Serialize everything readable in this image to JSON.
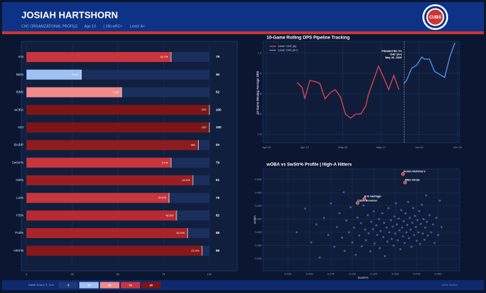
{
  "header": {
    "title": "JOSIAH HARTSHORN",
    "subtitle": [
      "CHC ORGANIZATIONAL PROFILE",
      "Age 19",
      "| 196 wRC+",
      "Level: A+"
    ],
    "logo": "CUBS"
  },
  "footer": {
    "scale_label": "RANK SCALE P_TILE",
    "steps": [
      {
        "value": 5,
        "color": "#1b3a7a"
      },
      {
        "value": 30,
        "color": "#9ec0f2"
      },
      {
        "value": 50,
        "color": "#f08a8a"
      },
      {
        "value": 70,
        "color": "#c8353d"
      },
      {
        "value": 95,
        "color": "#7d1517"
      }
    ],
    "note": "100% Verified"
  },
  "chart_data": [
    {
      "type": "bar",
      "categories": [
        "K%",
        "BB%",
        "BB/K",
        "wOBA",
        "ISO",
        "BABIP",
        "SwStr%",
        "GB%",
        "LD%",
        "FB%",
        "Pull%",
        "HR/FB"
      ],
      "values": [
        79,
        30,
        52,
        100,
        100,
        94,
        79,
        91,
        78,
        82,
        88,
        96
      ],
      "stats": [
        "15.2%",
        "5.9%",
        "0.39",
        ".521",
        ".337",
        ".381",
        "9.1%",
        "22.9%",
        "20.6%",
        "42.6%",
        "52.6%",
        "22.3%"
      ],
      "colors": [
        "#c8353d",
        "#9ec0f2",
        "#f08a8a",
        "#7d1517",
        "#7d1517",
        "#8e1c1e",
        "#c8353d",
        "#9a1f22",
        "#c8353d",
        "#b82b32",
        "#a82428",
        "#861819"
      ],
      "xlim": [
        0,
        100
      ],
      "xticks": [
        0,
        25,
        50,
        75,
        100
      ],
      "grid": true
    },
    {
      "type": "line",
      "title": "10-Game Rolling OPS Pipeline Tracking",
      "ylabel": "10-Game Moving Average OPS",
      "series": [
        {
          "name": "Level: CHC (A)",
          "color": "#e0474c",
          "x": [
            "Apr 14",
            "Apr 16",
            "Apr 17",
            "Apr 19",
            "Apr 21",
            "Apr 23",
            "Apr 24",
            "Apr 25",
            "Apr 27",
            "Apr 29",
            "May 01",
            "May 03",
            "May 05",
            "May 07",
            "May 09",
            "May 11",
            "May 12",
            "May 14",
            "May 16",
            "May 18",
            "May 20",
            "May 22",
            "May 24"
          ],
          "values": [
            0.91,
            0.86,
            0.75,
            0.93,
            0.92,
            0.9,
            0.82,
            0.75,
            0.81,
            0.84,
            0.77,
            0.6,
            0.56,
            0.6,
            0.6,
            0.68,
            0.79,
            0.93,
            1.07,
            0.96,
            0.84,
            0.98,
            0.84
          ]
        },
        {
          "name": "Level: CHC (A+)",
          "color": "#4f95e8",
          "x": [
            "May 26",
            "May 27",
            "May 29",
            "May 31",
            "Jun 02",
            "Jun 03",
            "Jun 05",
            "Jun 07",
            "Jun 09",
            "Jun 11",
            "Jun 13",
            "Jun 15"
          ],
          "values": [
            0.9,
            0.93,
            1.05,
            1.08,
            1.16,
            1.14,
            1.14,
            1.02,
            0.99,
            0.96,
            1.16,
            1.3
          ]
        }
      ],
      "annotation": {
        "x": "May 26",
        "lines": [
          "PROMOTED TO",
          "CHC (A+)",
          "May 26, 2026"
        ]
      },
      "xlim": [
        "Apr 02",
        "Jun 16"
      ],
      "xticks": [
        "Apr 02",
        "Apr 17",
        "May 02",
        "May 17",
        "Jun 01",
        "Jun 16"
      ],
      "ylim": [
        0.32,
        1.3
      ],
      "yticks": [
        0.4,
        0.6,
        0.8,
        {
          "value": 1,
          "label": "1.0"
        },
        1.2
      ],
      "grid": true,
      "legend": "upper-left"
    },
    {
      "type": "scatter",
      "title": "wOBA vs SwStr% Profile  |  High-A Hitters",
      "xlabel": "SwStr%",
      "ylabel": "wOBA",
      "color": "#4a78c0",
      "highlight_color": "#e03a3e",
      "points": {
        "x": [
          0.215,
          0.205,
          0.198,
          0.192,
          0.188,
          0.183,
          0.178,
          0.175,
          0.171,
          0.168,
          0.165,
          0.162,
          0.159,
          0.157,
          0.154,
          0.152,
          0.15,
          0.148,
          0.146,
          0.144,
          0.142,
          0.14,
          0.139,
          0.137,
          0.135,
          0.134,
          0.132,
          0.131,
          0.129,
          0.128,
          0.126,
          0.125,
          0.124,
          0.122,
          0.121,
          0.119,
          0.118,
          0.117,
          0.115,
          0.114,
          0.113,
          0.112,
          0.11,
          0.109,
          0.108,
          0.107,
          0.105,
          0.104,
          0.103,
          0.102,
          0.101,
          0.1,
          0.099,
          0.098,
          0.097,
          0.096,
          0.095,
          0.094,
          0.093,
          0.092,
          0.091,
          0.09,
          0.089,
          0.088,
          0.087,
          0.086,
          0.085,
          0.084,
          0.083,
          0.082,
          0.081,
          0.08,
          0.079,
          0.078,
          0.077,
          0.076,
          0.075,
          0.074,
          0.073,
          0.072,
          0.071,
          0.07,
          0.069,
          0.068,
          0.067,
          0.066,
          0.065,
          0.064,
          0.063,
          0.062,
          0.06,
          0.058,
          0.056,
          0.054,
          0.052,
          0.05,
          0.048,
          0.046,
          0.12,
          0.16
        ],
        "y": [
          0.3,
          0.39,
          0.262,
          0.33,
          0.205,
          0.355,
          0.29,
          0.41,
          0.245,
          0.32,
          0.372,
          0.28,
          0.23,
          0.345,
          0.3,
          0.395,
          0.262,
          0.318,
          0.215,
          0.356,
          0.288,
          0.335,
          0.247,
          0.402,
          0.31,
          0.27,
          0.365,
          0.296,
          0.228,
          0.34,
          0.312,
          0.38,
          0.258,
          0.327,
          0.29,
          0.35,
          0.24,
          0.305,
          0.372,
          0.282,
          0.336,
          0.21,
          0.318,
          0.265,
          0.392,
          0.3,
          0.346,
          0.275,
          0.322,
          0.25,
          0.36,
          0.295,
          0.41,
          0.33,
          0.27,
          0.352,
          0.308,
          0.236,
          0.384,
          0.318,
          0.285,
          0.342,
          0.26,
          0.372,
          0.3,
          0.328,
          0.415,
          0.278,
          0.355,
          0.31,
          0.245,
          0.336,
          0.392,
          0.29,
          0.362,
          0.32,
          0.268,
          0.346,
          0.3,
          0.38,
          0.256,
          0.332,
          0.405,
          0.295,
          0.35,
          0.272,
          0.318,
          0.44,
          0.34,
          0.288,
          0.365,
          0.3,
          0.33,
          0.26,
          0.355,
          0.29,
          0.42,
          0.32,
          0.432,
          0.452
        ]
      },
      "highlights": [
        {
          "label": "Josiah Hartshorn",
          "x": 0.091,
          "y": 0.521
        },
        {
          "label": "Mike Sirota",
          "x": 0.0885,
          "y": 0.489
        },
        {
          "label": "Eric Hartman",
          "x": 0.136,
          "y": 0.427
        },
        {
          "label": "Caleb Bonemer",
          "x": 0.144,
          "y": 0.411
        }
      ],
      "xlim": [
        0.25,
        0.0275
      ],
      "xticks": [
        {
          "value": 0.225,
          "label": "0.225"
        },
        {
          "value": 0.2,
          "label": "0.200"
        },
        {
          "value": 0.175,
          "label": "0.175"
        },
        {
          "value": 0.15,
          "label": "0.150"
        },
        {
          "value": 0.125,
          "label": "0.125"
        },
        {
          "value": 0.1,
          "label": "0.100"
        },
        {
          "value": 0.075,
          "label": "0.075"
        },
        {
          "value": 0.05,
          "label": "0.050"
        }
      ],
      "ylim": [
        0.154,
        0.54
      ],
      "yticks": [
        {
          "value": 0.2,
          "label": "0.200"
        },
        {
          "value": 0.25,
          "label": "0.250"
        },
        {
          "value": 0.3,
          "label": "0.300"
        },
        {
          "value": 0.35,
          "label": "0.350"
        },
        {
          "value": 0.4,
          "label": "0.400"
        },
        {
          "value": 0.45,
          "label": "0.450"
        },
        {
          "value": 0.5,
          "label": "0.500"
        }
      ],
      "grid": true
    }
  ]
}
